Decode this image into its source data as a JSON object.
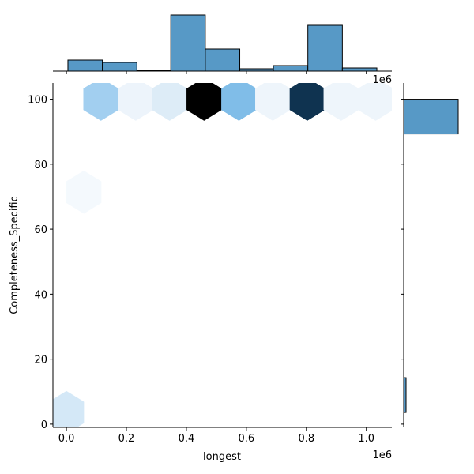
{
  "chart_data": {
    "type": "hexbin-jointplot",
    "xlabel": "longest",
    "ylabel": "Completeness_Specific",
    "x_offset_label": "1e6",
    "top_offset_label": "1e6",
    "xlim": [
      -45000,
      1085000
    ],
    "ylim": [
      -1,
      105
    ],
    "x_ticks": [
      0,
      200000,
      400000,
      600000,
      800000,
      1000000
    ],
    "x_tick_labels": [
      "0.0",
      "0.2",
      "0.4",
      "0.6",
      "0.8",
      "1.0"
    ],
    "y_ticks": [
      0,
      20,
      40,
      60,
      80,
      100
    ],
    "y_tick_labels": [
      "0",
      "20",
      "40",
      "60",
      "80",
      "100"
    ],
    "grid": false,
    "hexbins": [
      {
        "x": 115000,
        "y": 100,
        "color": "#a2cff0"
      },
      {
        "x": 231000,
        "y": 100,
        "color": "#edf4fb"
      },
      {
        "x": 344000,
        "y": 100,
        "color": "#ddecf7"
      },
      {
        "x": 459000,
        "y": 100,
        "color": "#000000"
      },
      {
        "x": 575000,
        "y": 100,
        "color": "#80bde8"
      },
      {
        "x": 688000,
        "y": 100,
        "color": "#eef5fb"
      },
      {
        "x": 803000,
        "y": 100,
        "color": "#0f3350"
      },
      {
        "x": 916000,
        "y": 100,
        "color": "#eef5fb"
      },
      {
        "x": 1031000,
        "y": 100,
        "color": "#eef5fb"
      },
      {
        "x": 58000,
        "y": 71.4,
        "color": "#f4f9fd"
      },
      {
        "x": 0,
        "y": 3.6,
        "color": "#d4e8f7"
      }
    ],
    "top_hist": {
      "bin_edges": [
        5000,
        120000,
        235000,
        348000,
        463000,
        578000,
        690000,
        805000,
        920000,
        1035000
      ],
      "relative_counts": [
        14,
        11,
        1,
        71,
        28,
        3,
        7,
        58,
        4
      ]
    },
    "right_hist": {
      "bars": [
        {
          "y0": 89.3,
          "y1": 100,
          "relative_count": 69
        },
        {
          "y0": 3.6,
          "y1": 14.3,
          "relative_count": 3
        }
      ]
    },
    "bar_color": "#5799c6"
  }
}
